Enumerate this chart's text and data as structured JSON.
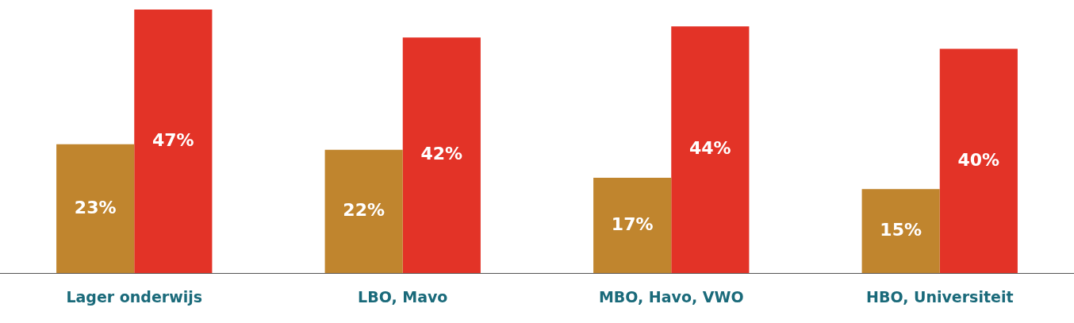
{
  "chart_data": {
    "type": "bar",
    "categories": [
      "Lager onderwijs",
      "LBO, Mavo",
      "MBO, Havo, VWO",
      "HBO, Universiteit"
    ],
    "series": [
      {
        "color": "#c0852e",
        "values": [
          23,
          22,
          17,
          15
        ],
        "value_labels": [
          "23%",
          "22%",
          "17%",
          "15%"
        ]
      },
      {
        "color": "#e33327",
        "values": [
          47,
          42,
          44,
          40
        ],
        "value_labels": [
          "47%",
          "42%",
          "44%",
          "40%"
        ]
      }
    ],
    "grid": false,
    "legend": false
  }
}
